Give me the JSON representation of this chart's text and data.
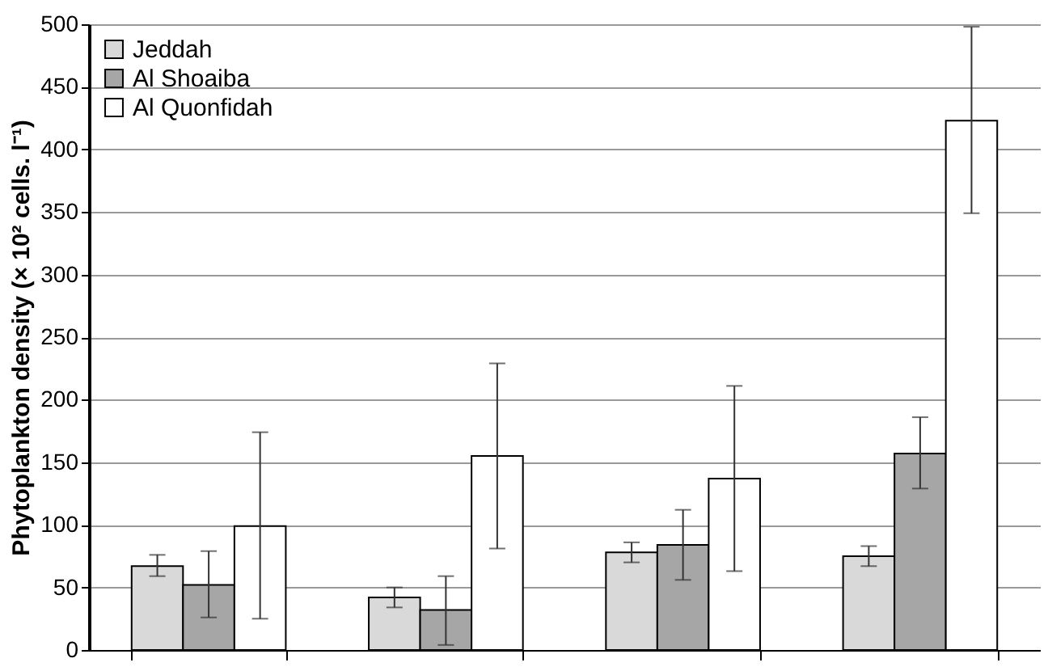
{
  "chart_data": {
    "type": "bar",
    "ylabel": "Phytoplankton density (× 10² cells. l⁻¹)",
    "categories": [
      null,
      null,
      null,
      null
    ],
    "series": [
      {
        "name": "Jeddah",
        "color": "#d9d9d9",
        "values": [
          67,
          42,
          78,
          75
        ],
        "errors": [
          [
            59,
            76
          ],
          [
            34,
            50
          ],
          [
            70,
            86
          ],
          [
            67,
            83
          ]
        ]
      },
      {
        "name": "Al Shoaiba",
        "color": "#a6a6a6",
        "values": [
          52,
          32,
          84,
          157
        ],
        "errors": [
          [
            26,
            79
          ],
          [
            4,
            59
          ],
          [
            56,
            112
          ],
          [
            129,
            186
          ]
        ]
      },
      {
        "name": "Al Quonfidah",
        "color": "#ffffff",
        "values": [
          99,
          155,
          137,
          423
        ],
        "errors": [
          [
            25,
            174
          ],
          [
            81,
            229
          ],
          [
            63,
            211
          ],
          [
            349,
            498
          ]
        ]
      }
    ],
    "ylim": [
      0,
      500
    ],
    "yticks": [
      0,
      50,
      100,
      150,
      200,
      250,
      300,
      350,
      400,
      450,
      500
    ],
    "grid": "y",
    "legend": "top left"
  }
}
